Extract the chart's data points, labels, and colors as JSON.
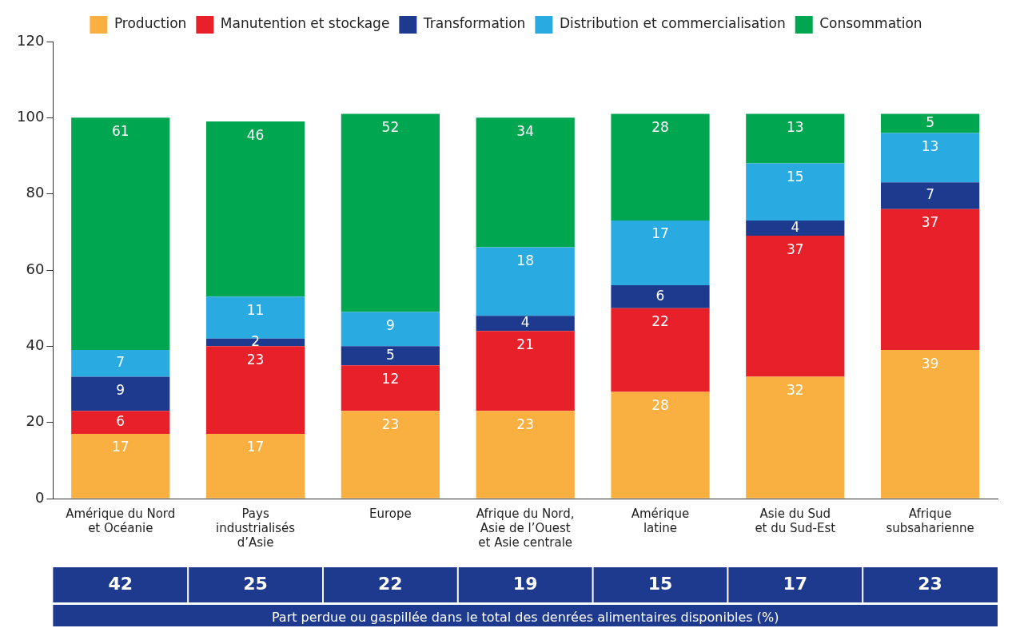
{
  "chart_data": {
    "type": "bar",
    "stacked": true,
    "categories": [
      "Amérique du Nord\net Océanie",
      "Pays\nindustrialisés\nd’Asie",
      "Europe",
      "Afrique du Nord,\nAsie de l’Ouest\net Asie centrale",
      "Amérique\nlatine",
      "Asie du Sud\net du Sud-Est",
      "Afrique\nsubsaharienne"
    ],
    "series": [
      {
        "name": "Production",
        "color": "#f9b040",
        "values": [
          17,
          17,
          23,
          23,
          28,
          32,
          39
        ]
      },
      {
        "name": "Manutention et stockage",
        "color": "#e8202a",
        "values": [
          6,
          23,
          12,
          21,
          22,
          37,
          37
        ]
      },
      {
        "name": "Transformation",
        "color": "#1e3a8f",
        "values": [
          9,
          2,
          5,
          4,
          6,
          4,
          7
        ]
      },
      {
        "name": "Distribution et commercialisation",
        "color": "#29aae1",
        "values": [
          7,
          11,
          9,
          18,
          17,
          15,
          13
        ]
      },
      {
        "name": "Consommation",
        "color": "#00a650",
        "values": [
          61,
          46,
          52,
          34,
          28,
          13,
          5
        ]
      }
    ],
    "ylim": [
      0,
      120
    ],
    "yticks": [
      0,
      20,
      40,
      60,
      80,
      100,
      120
    ],
    "grid": false,
    "legend": "top",
    "data_labels": true,
    "annotations": [
      "42",
      "25",
      "22",
      "19",
      "15",
      "17",
      "23",
      "Part perdue ou gaspillée dans le total des denrées alimentaires disponibles (%)"
    ]
  }
}
